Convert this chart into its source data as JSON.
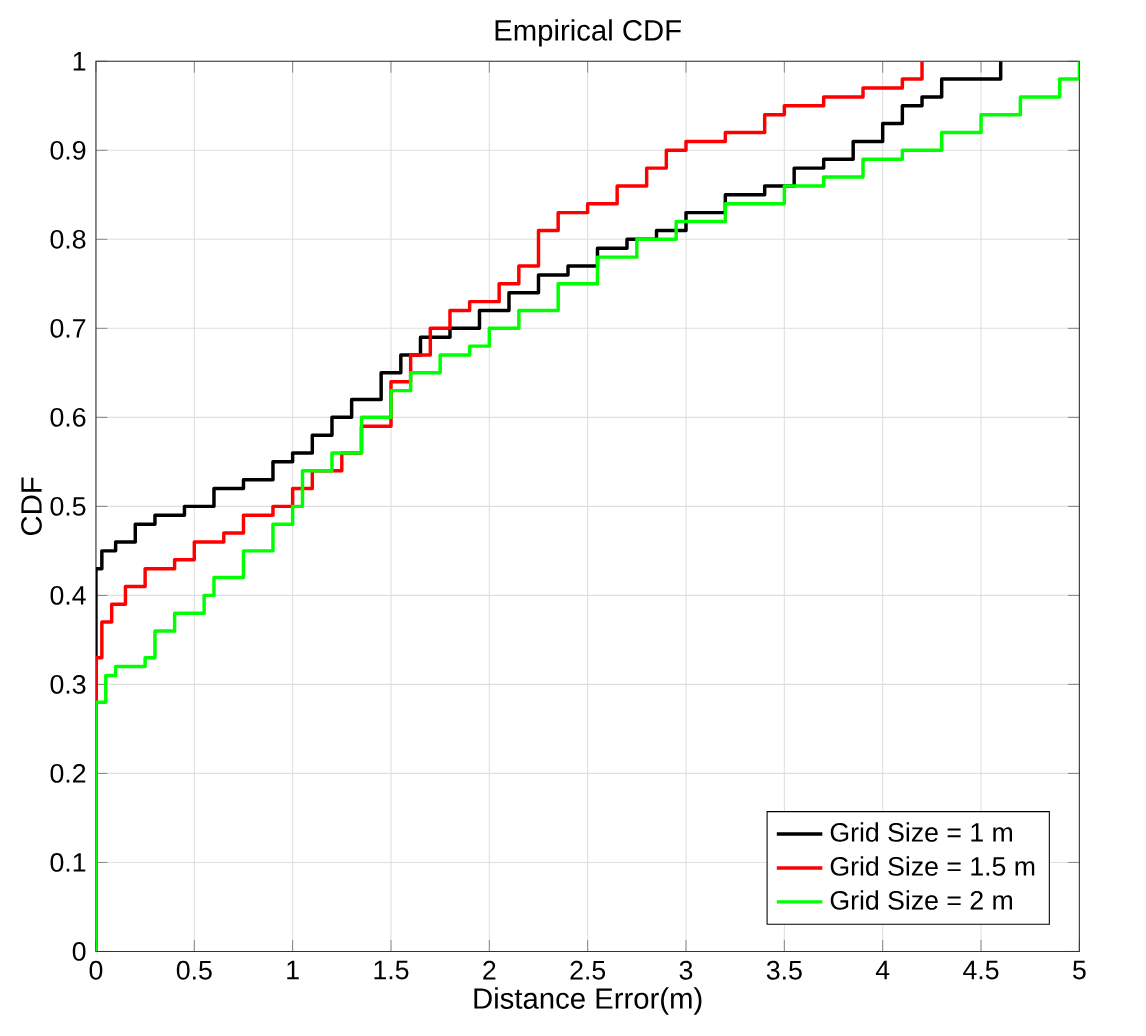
{
  "chart_data": {
    "type": "step",
    "title": "Empirical CDF",
    "xlabel": "Distance Error(m)",
    "ylabel": "CDF",
    "xlim": [
      0,
      5
    ],
    "ylim": [
      0,
      1
    ],
    "xticks": [
      0,
      0.5,
      1,
      1.5,
      2,
      2.5,
      3,
      3.5,
      4,
      4.5,
      5
    ],
    "yticks": [
      0,
      0.1,
      0.2,
      0.3,
      0.4,
      0.5,
      0.6,
      0.7,
      0.8,
      0.9,
      1
    ],
    "grid": true,
    "legend": "bottom right",
    "line_style": "solid",
    "series": [
      {
        "name": "Grid Size = 1 m",
        "color": "#000000",
        "x": [
          0,
          0,
          0.03,
          0.1,
          0.2,
          0.3,
          0.45,
          0.6,
          0.75,
          0.9,
          1.0,
          1.1,
          1.2,
          1.3,
          1.45,
          1.55,
          1.65,
          1.8,
          1.95,
          2.1,
          2.25,
          2.4,
          2.55,
          2.7,
          2.85,
          3.0,
          3.2,
          3.4,
          3.55,
          3.7,
          3.85,
          4.0,
          4.1,
          4.2,
          4.3,
          4.6
        ],
        "values": [
          0,
          0.43,
          0.45,
          0.46,
          0.48,
          0.49,
          0.5,
          0.52,
          0.53,
          0.55,
          0.56,
          0.58,
          0.6,
          0.62,
          0.65,
          0.67,
          0.69,
          0.7,
          0.72,
          0.74,
          0.76,
          0.77,
          0.79,
          0.8,
          0.81,
          0.83,
          0.85,
          0.86,
          0.88,
          0.89,
          0.91,
          0.93,
          0.95,
          0.96,
          0.98,
          1.0
        ]
      },
      {
        "name": "Grid Size = 1.5 m",
        "color": "#ff0000",
        "x": [
          0,
          0,
          0.03,
          0.08,
          0.15,
          0.25,
          0.4,
          0.5,
          0.65,
          0.75,
          0.9,
          1.0,
          1.1,
          1.25,
          1.35,
          1.5,
          1.6,
          1.7,
          1.8,
          1.9,
          2.05,
          2.15,
          2.25,
          2.35,
          2.5,
          2.65,
          2.8,
          2.9,
          3.0,
          3.2,
          3.4,
          3.5,
          3.7,
          3.9,
          4.1,
          4.2
        ],
        "values": [
          0,
          0.33,
          0.37,
          0.39,
          0.41,
          0.43,
          0.44,
          0.46,
          0.47,
          0.49,
          0.5,
          0.52,
          0.54,
          0.56,
          0.59,
          0.64,
          0.67,
          0.7,
          0.72,
          0.73,
          0.75,
          0.77,
          0.81,
          0.83,
          0.84,
          0.86,
          0.88,
          0.9,
          0.91,
          0.92,
          0.94,
          0.95,
          0.96,
          0.97,
          0.98,
          1.0
        ]
      },
      {
        "name": "Grid Size = 2 m",
        "color": "#00ff00",
        "x": [
          0,
          0,
          0.05,
          0.1,
          0.25,
          0.3,
          0.4,
          0.55,
          0.6,
          0.75,
          0.9,
          1.0,
          1.05,
          1.2,
          1.35,
          1.5,
          1.6,
          1.75,
          1.9,
          2.0,
          2.15,
          2.35,
          2.55,
          2.75,
          2.95,
          3.2,
          3.5,
          3.7,
          3.9,
          4.1,
          4.3,
          4.5,
          4.7,
          4.9,
          5.0
        ],
        "values": [
          0,
          0.28,
          0.31,
          0.32,
          0.33,
          0.36,
          0.38,
          0.4,
          0.42,
          0.45,
          0.48,
          0.5,
          0.54,
          0.56,
          0.6,
          0.63,
          0.65,
          0.67,
          0.68,
          0.7,
          0.72,
          0.75,
          0.78,
          0.8,
          0.82,
          0.84,
          0.86,
          0.87,
          0.89,
          0.9,
          0.92,
          0.94,
          0.96,
          0.98,
          1.0
        ]
      }
    ]
  }
}
